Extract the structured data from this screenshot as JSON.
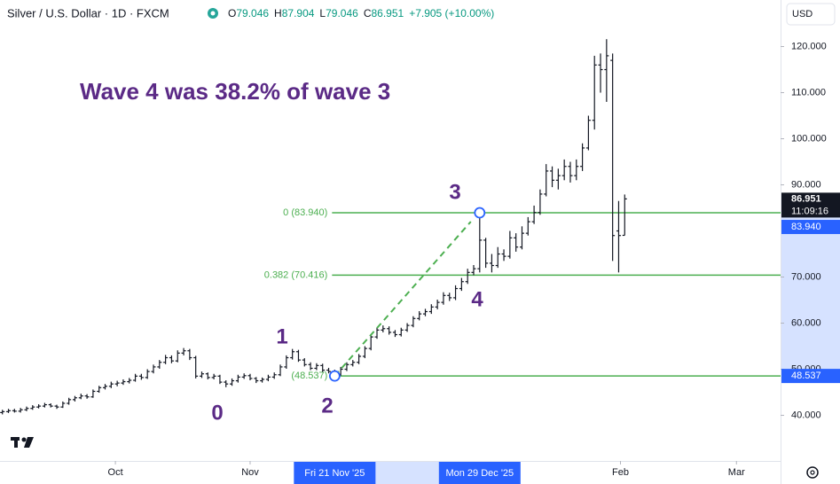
{
  "chart_data": {
    "type": "ohlc",
    "title": "Silver / U.S. Dollar · 1D · FXCM",
    "ohlc_labels": [
      "O",
      "H",
      "L",
      "C"
    ],
    "change": "+7.905 (+10.00%)",
    "currency": "USD",
    "annotation": "Wave 4 was 38.2% of wave 3",
    "wave_labels": [
      "0",
      "1",
      "2",
      "3",
      "4"
    ],
    "countdown": "11:09:16",
    "color": "#131722",
    "bars": [
      [
        40.6,
        41.2,
        40.2,
        40.8
      ],
      [
        40.8,
        41.4,
        40.5,
        41.0
      ],
      [
        41.0,
        41.4,
        40.6,
        40.9
      ],
      [
        40.9,
        41.6,
        40.6,
        41.2
      ],
      [
        41.2,
        41.9,
        40.9,
        41.5
      ],
      [
        41.5,
        42.2,
        41.2,
        41.8
      ],
      [
        41.8,
        42.4,
        41.5,
        42.0
      ],
      [
        42.0,
        42.7,
        41.7,
        42.3
      ],
      [
        42.3,
        42.6,
        41.7,
        42.0
      ],
      [
        42.0,
        42.3,
        41.4,
        41.8
      ],
      [
        41.8,
        43.0,
        41.6,
        42.6
      ],
      [
        42.6,
        43.8,
        42.3,
        43.4
      ],
      [
        43.4,
        44.2,
        43.0,
        43.8
      ],
      [
        43.8,
        44.7,
        43.5,
        44.2
      ],
      [
        44.2,
        44.6,
        43.6,
        44.0
      ],
      [
        44.0,
        45.6,
        43.8,
        45.2
      ],
      [
        45.2,
        46.4,
        44.9,
        46.0
      ],
      [
        46.0,
        46.8,
        45.6,
        46.3
      ],
      [
        46.3,
        47.3,
        45.9,
        46.8
      ],
      [
        46.8,
        47.5,
        46.3,
        47.0
      ],
      [
        47.0,
        47.8,
        46.6,
        47.3
      ],
      [
        47.3,
        48.1,
        46.9,
        47.6
      ],
      [
        47.6,
        49.0,
        47.3,
        48.5
      ],
      [
        48.5,
        49.0,
        47.7,
        48.2
      ],
      [
        48.2,
        50.0,
        47.9,
        49.5
      ],
      [
        49.5,
        51.0,
        49.1,
        50.5
      ],
      [
        50.5,
        52.0,
        50.1,
        51.5
      ],
      [
        51.5,
        53.1,
        51.1,
        52.5
      ],
      [
        52.5,
        53.0,
        51.3,
        51.8
      ],
      [
        51.8,
        54.1,
        51.5,
        53.5
      ],
      [
        53.5,
        54.6,
        53.0,
        54.0
      ],
      [
        54.0,
        54.4,
        52.0,
        52.5
      ],
      [
        52.5,
        52.9,
        48.0,
        48.5
      ],
      [
        48.5,
        49.5,
        48.1,
        49.0
      ],
      [
        49.0,
        49.3,
        47.8,
        48.2
      ],
      [
        48.2,
        49.0,
        47.8,
        48.5
      ],
      [
        48.5,
        48.8,
        46.8,
        47.2
      ],
      [
        47.2,
        47.6,
        46.1,
        46.8
      ],
      [
        46.8,
        48.0,
        46.4,
        47.5
      ],
      [
        47.5,
        48.8,
        47.1,
        48.3
      ],
      [
        48.3,
        49.1,
        47.9,
        48.6
      ],
      [
        48.6,
        49.0,
        47.6,
        48.0
      ],
      [
        48.0,
        48.3,
        47.0,
        47.5
      ],
      [
        47.5,
        48.2,
        47.1,
        47.8
      ],
      [
        47.8,
        48.8,
        47.4,
        48.3
      ],
      [
        48.3,
        49.3,
        47.9,
        48.8
      ],
      [
        48.8,
        51.0,
        48.5,
        50.5
      ],
      [
        50.5,
        53.0,
        50.1,
        52.5
      ],
      [
        52.5,
        54.4,
        52.1,
        53.8
      ],
      [
        53.8,
        54.2,
        51.6,
        52.0
      ],
      [
        52.0,
        52.4,
        50.6,
        51.0
      ],
      [
        51.0,
        51.5,
        49.8,
        50.2
      ],
      [
        50.2,
        51.3,
        49.8,
        50.8
      ],
      [
        50.8,
        51.2,
        49.4,
        49.8
      ],
      [
        49.8,
        50.3,
        49.1,
        49.5
      ],
      [
        49.5,
        49.9,
        48.537,
        48.9
      ],
      [
        48.9,
        50.5,
        48.6,
        50.0
      ],
      [
        50.0,
        51.5,
        49.6,
        51.0
      ],
      [
        51.0,
        52.0,
        50.6,
        51.5
      ],
      [
        51.5,
        53.3,
        51.1,
        52.8
      ],
      [
        52.8,
        55.0,
        52.4,
        54.5
      ],
      [
        54.5,
        57.5,
        54.1,
        57.0
      ],
      [
        57.0,
        59.0,
        56.6,
        58.5
      ],
      [
        58.5,
        59.5,
        58.0,
        58.8
      ],
      [
        58.8,
        59.3,
        57.5,
        58.0
      ],
      [
        58.0,
        58.5,
        57.0,
        57.5
      ],
      [
        57.5,
        59.0,
        57.1,
        58.5
      ],
      [
        58.5,
        60.0,
        58.1,
        59.5
      ],
      [
        59.5,
        61.5,
        59.1,
        61.0
      ],
      [
        61.0,
        62.6,
        60.6,
        62.0
      ],
      [
        62.0,
        63.1,
        61.5,
        62.5
      ],
      [
        62.5,
        64.1,
        62.0,
        63.5
      ],
      [
        63.5,
        65.1,
        63.0,
        64.5
      ],
      [
        64.5,
        66.7,
        64.0,
        66.0
      ],
      [
        66.0,
        66.6,
        64.8,
        65.5
      ],
      [
        65.5,
        68.2,
        65.0,
        67.5
      ],
      [
        67.5,
        69.8,
        67.0,
        69.0
      ],
      [
        69.0,
        71.8,
        68.5,
        71.0
      ],
      [
        71.0,
        72.6,
        70.4,
        71.8
      ],
      [
        71.8,
        83.94,
        71.0,
        78.0
      ],
      [
        78.0,
        78.5,
        72.0,
        73.0
      ],
      [
        73.0,
        75.0,
        71.0,
        72.5
      ],
      [
        72.5,
        76.5,
        72.0,
        75.0
      ],
      [
        75.0,
        76.0,
        73.5,
        74.5
      ],
      [
        74.5,
        80.0,
        74.0,
        78.5
      ],
      [
        78.5,
        79.5,
        75.5,
        76.5
      ],
      [
        76.5,
        81.0,
        76.0,
        79.5
      ],
      [
        79.5,
        83.0,
        79.0,
        82.0
      ],
      [
        82.0,
        85.5,
        81.5,
        84.0
      ],
      [
        84.0,
        89.0,
        83.5,
        88.0
      ],
      [
        88.0,
        94.5,
        87.5,
        93.0
      ],
      [
        93.0,
        94.0,
        89.5,
        91.0
      ],
      [
        91.0,
        93.5,
        89.0,
        92.0
      ],
      [
        92.0,
        95.5,
        91.0,
        94.0
      ],
      [
        94.0,
        95.0,
        90.5,
        92.0
      ],
      [
        92.0,
        95.5,
        91.0,
        94.0
      ],
      [
        94.0,
        99.0,
        93.0,
        98.0
      ],
      [
        98.0,
        105.0,
        97.5,
        104.0
      ],
      [
        104.0,
        118.0,
        102.0,
        116.0
      ],
      [
        116.0,
        118.5,
        110.0,
        115.0
      ],
      [
        115.0,
        121.6,
        108.0,
        118.0
      ],
      [
        117.0,
        118.5,
        73.5,
        79.0
      ],
      [
        80.0,
        86.5,
        71.0,
        79.0
      ],
      [
        79.046,
        87.904,
        79.046,
        86.951
      ]
    ],
    "xlim": [
      -0.4,
      128.8
    ],
    "xticks": [
      {
        "value": 18.7,
        "label": "Oct"
      },
      {
        "value": 41,
        "label": "Nov"
      },
      {
        "value": 102.3,
        "label": "Feb"
      },
      {
        "value": 121.5,
        "label": "Mar"
      }
    ],
    "crosshair_x": [
      {
        "value": 55,
        "label": "Fri 21 Nov '25"
      },
      {
        "value": 79,
        "label": "Mon 29 Dec '25"
      }
    ],
    "ylim": [
      30.1,
      130.1
    ],
    "yticks": [
      {
        "value": 40,
        "label": "40.000"
      },
      {
        "value": 50,
        "label": "50.000"
      },
      {
        "value": 60,
        "label": "60.000"
      },
      {
        "value": 70,
        "label": "70.000"
      },
      {
        "value": 90,
        "label": "90.000"
      },
      {
        "value": 100,
        "label": "100.000"
      },
      {
        "value": 110,
        "label": "110.000"
      },
      {
        "value": 120,
        "label": "120.000"
      }
    ],
    "fib_levels": [
      {
        "value": 83.94,
        "label": "0 (83.940)",
        "axis_label": "83.940"
      },
      {
        "value": 70.416,
        "label": "0.382 (70.416)"
      },
      {
        "value": 48.537,
        "label": "(48.537)",
        "axis_label": "48.537"
      }
    ],
    "fib_color": "#4caf50",
    "wave_line": {
      "from": {
        "x": 55,
        "y": 48.537
      },
      "to": {
        "x": 79,
        "y": 83.94
      }
    }
  }
}
